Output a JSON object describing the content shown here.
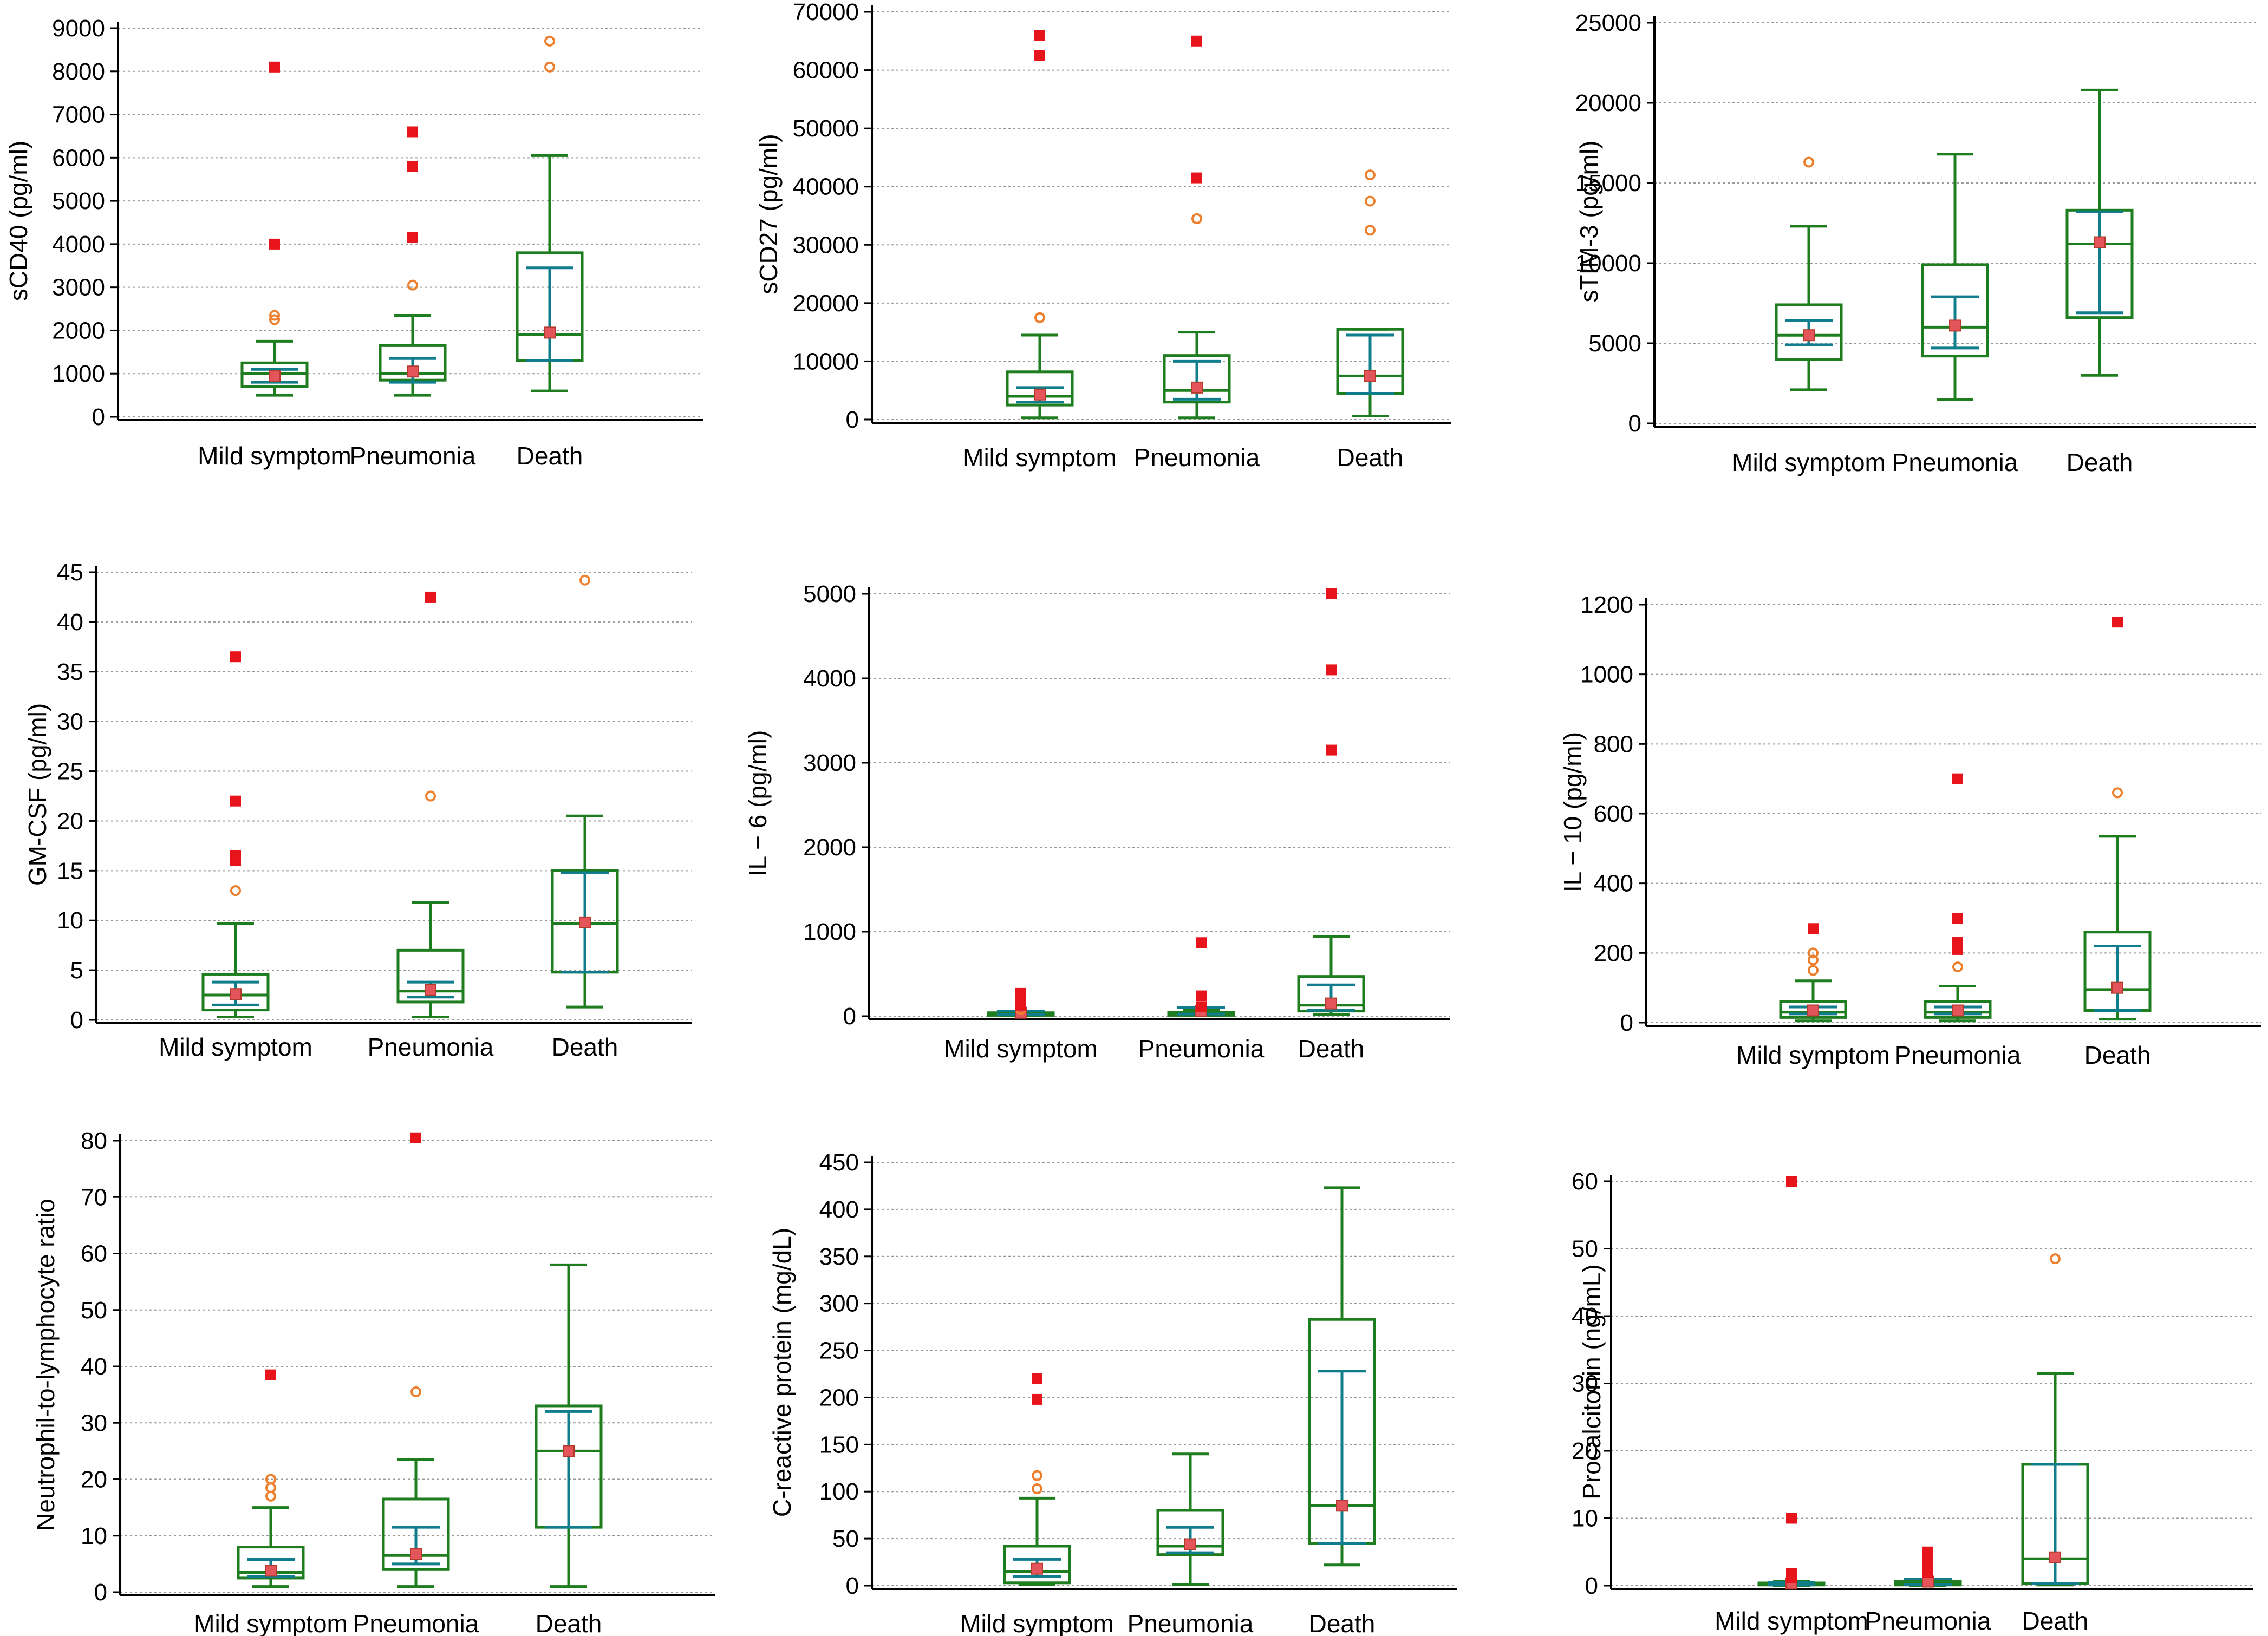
{
  "colors": {
    "box": "#1e7d1e",
    "mean_ci": "#0f7d8c",
    "far_outlier": "#e8141c",
    "outlier": "#ee7f2d",
    "grid": "#9a9a9a",
    "axis": "#000000"
  },
  "chart_data": [
    {
      "type": "box",
      "ylabel": "sCD40 (pg/ml)",
      "categories": [
        "Mild symptom",
        "Pneumonia",
        "Death"
      ],
      "ylim": [
        0,
        9000
      ],
      "yticks": [
        0,
        1000,
        2000,
        3000,
        4000,
        5000,
        6000,
        7000,
        8000,
        9000
      ],
      "yticklabels": [
        "0",
        "1000",
        "2000",
        "3000",
        "4000",
        "5000",
        "6000",
        "7000",
        "8000",
        "9000"
      ],
      "groups": [
        {
          "whisker_low": 500,
          "q1": 700,
          "median": 1000,
          "q3": 1250,
          "whisker_high": 1750,
          "mean": 950,
          "ci": [
            800,
            1100
          ],
          "outliers": [
            2250,
            2350
          ],
          "far_outliers": [
            4000,
            8100
          ]
        },
        {
          "whisker_low": 500,
          "q1": 850,
          "median": 1000,
          "q3": 1650,
          "whisker_high": 2350,
          "mean": 1050,
          "ci": [
            800,
            1350
          ],
          "outliers": [
            3050
          ],
          "far_outliers": [
            4150,
            5800,
            6600
          ]
        },
        {
          "whisker_low": 600,
          "q1": 1300,
          "median": 1900,
          "q3": 3800,
          "whisker_high": 6050,
          "mean": 1950,
          "ci": [
            1300,
            3450
          ],
          "outliers": [
            8100,
            8700
          ],
          "far_outliers": []
        }
      ]
    },
    {
      "type": "box",
      "ylabel": "sCD27 (pg/ml)",
      "categories": [
        "Mild symptom",
        "Pneumonia",
        "Death"
      ],
      "ylim": [
        0,
        70000
      ],
      "yticks": [
        0,
        10000,
        20000,
        30000,
        40000,
        50000,
        60000,
        70000
      ],
      "yticklabels": [
        "0",
        "10000",
        "20000",
        "30000",
        "40000",
        "50000",
        "60000",
        "70000"
      ],
      "groups": [
        {
          "whisker_low": 300,
          "q1": 2500,
          "median": 4000,
          "q3": 8200,
          "whisker_high": 14500,
          "mean": 4300,
          "ci": [
            3000,
            5500
          ],
          "outliers": [
            17500
          ],
          "far_outliers": [
            62500,
            66000
          ]
        },
        {
          "whisker_low": 300,
          "q1": 3000,
          "median": 5000,
          "q3": 11000,
          "whisker_high": 15000,
          "mean": 5500,
          "ci": [
            3500,
            10000
          ],
          "outliers": [
            34500
          ],
          "far_outliers": [
            41500,
            65000
          ]
        },
        {
          "whisker_low": 600,
          "q1": 4500,
          "median": 7500,
          "q3": 15500,
          "whisker_high": 15500,
          "mean": 7500,
          "ci": [
            4500,
            14500
          ],
          "outliers": [
            32500,
            37500,
            42000
          ],
          "far_outliers": []
        }
      ]
    },
    {
      "type": "box",
      "ylabel": "sTIM-3 (pg/ml)",
      "categories": [
        "Mild symptom",
        "Pneumonia",
        "Death"
      ],
      "ylim": [
        0,
        25000
      ],
      "yticks": [
        0,
        5000,
        10000,
        15000,
        20000,
        25000
      ],
      "yticklabels": [
        "0",
        "5000",
        "10000",
        "15000",
        "20000",
        "25000"
      ],
      "groups": [
        {
          "whisker_low": 2100,
          "q1": 4000,
          "median": 5500,
          "q3": 7400,
          "whisker_high": 12300,
          "mean": 5500,
          "ci": [
            4900,
            6400
          ],
          "outliers": [
            16300
          ],
          "far_outliers": []
        },
        {
          "whisker_low": 1500,
          "q1": 4200,
          "median": 6000,
          "q3": 9900,
          "whisker_high": 16800,
          "mean": 6100,
          "ci": [
            4700,
            7900
          ],
          "outliers": [],
          "far_outliers": []
        },
        {
          "whisker_low": 3000,
          "q1": 6600,
          "median": 11200,
          "q3": 13300,
          "whisker_high": 20800,
          "mean": 11300,
          "ci": [
            6900,
            13200
          ],
          "outliers": [],
          "far_outliers": []
        }
      ]
    },
    {
      "type": "box",
      "ylabel": "GM-CSF (pg/ml)",
      "categories": [
        "Mild symptom",
        "Pneumonia",
        "Death"
      ],
      "ylim": [
        0,
        45
      ],
      "yticks": [
        0,
        5,
        10,
        15,
        20,
        25,
        30,
        35,
        40,
        45
      ],
      "yticklabels": [
        "0",
        "5",
        "10",
        "15",
        "20",
        "25",
        "30",
        "35",
        "40",
        "45"
      ],
      "groups": [
        {
          "whisker_low": 0.3,
          "q1": 1,
          "median": 2.5,
          "q3": 4.6,
          "whisker_high": 9.7,
          "mean": 2.6,
          "ci": [
            1.5,
            3.8
          ],
          "outliers": [
            13
          ],
          "far_outliers": [
            16,
            16.5,
            22,
            36.5
          ]
        },
        {
          "whisker_low": 0.3,
          "q1": 1.8,
          "median": 2.9,
          "q3": 7,
          "whisker_high": 11.8,
          "mean": 3,
          "ci": [
            2.3,
            3.8
          ],
          "outliers": [
            22.5
          ],
          "far_outliers": [
            42.5
          ]
        },
        {
          "whisker_low": 1.3,
          "q1": 4.8,
          "median": 9.7,
          "q3": 15,
          "whisker_high": 20.5,
          "mean": 9.8,
          "ci": [
            4.8,
            14.8
          ],
          "outliers": [
            44.2
          ],
          "far_outliers": []
        }
      ]
    },
    {
      "type": "box",
      "ylabel": "IL − 6 (pg/ml)",
      "categories": [
        "Mild symptom",
        "Pneumonia",
        "Death"
      ],
      "ylim": [
        0,
        5000
      ],
      "yticks": [
        0,
        1000,
        2000,
        3000,
        4000,
        5000
      ],
      "yticklabels": [
        "0",
        "1000",
        "2000",
        "3000",
        "4000",
        "5000"
      ],
      "groups": [
        {
          "whisker_low": 5,
          "q1": 10,
          "median": 20,
          "q3": 40,
          "whisker_high": 60,
          "mean": 40,
          "ci": [
            20,
            60
          ],
          "outliers": [
            80
          ],
          "far_outliers": [
            130,
            200,
            270
          ]
        },
        {
          "whisker_low": 5,
          "q1": 10,
          "median": 25,
          "q3": 45,
          "whisker_high": 70,
          "mean": 60,
          "ci": [
            25,
            100
          ],
          "outliers": [],
          "far_outliers": [
            110,
            240,
            870
          ]
        },
        {
          "whisker_low": 20,
          "q1": 60,
          "median": 130,
          "q3": 470,
          "whisker_high": 940,
          "mean": 150,
          "ci": [
            70,
            370
          ],
          "outliers": [],
          "far_outliers": [
            3150,
            4100,
            5000
          ]
        }
      ]
    },
    {
      "type": "box",
      "ylabel": "IL − 10 (pg/ml)",
      "categories": [
        "Mild symptom",
        "Pneumonia",
        "Death"
      ],
      "ylim": [
        0,
        1200
      ],
      "yticks": [
        0,
        200,
        400,
        600,
        800,
        1000,
        1200
      ],
      "yticklabels": [
        "0",
        "200",
        "400",
        "600",
        "800",
        "1000",
        "1200"
      ],
      "groups": [
        {
          "whisker_low": 5,
          "q1": 15,
          "median": 30,
          "q3": 60,
          "whisker_high": 120,
          "mean": 35,
          "ci": [
            25,
            45
          ],
          "outliers": [
            150,
            180,
            200
          ],
          "far_outliers": [
            270
          ]
        },
        {
          "whisker_low": 5,
          "q1": 15,
          "median": 30,
          "q3": 60,
          "whisker_high": 105,
          "mean": 35,
          "ci": [
            25,
            45
          ],
          "outliers": [
            160
          ],
          "far_outliers": [
            210,
            230,
            300,
            700
          ]
        },
        {
          "whisker_low": 10,
          "q1": 35,
          "median": 95,
          "q3": 260,
          "whisker_high": 535,
          "mean": 100,
          "ci": [
            35,
            220
          ],
          "outliers": [
            660
          ],
          "far_outliers": [
            1150
          ]
        }
      ]
    },
    {
      "type": "box",
      "ylabel": "Neutrophil-to-lymphocyte ratio",
      "categories": [
        "Mild symptom",
        "Pneumonia",
        "Death"
      ],
      "ylim": [
        0,
        80
      ],
      "yticks": [
        0,
        10,
        20,
        30,
        40,
        50,
        60,
        70,
        80
      ],
      "yticklabels": [
        "0",
        "10",
        "20",
        "30",
        "40",
        "50",
        "60",
        "70",
        "80"
      ],
      "groups": [
        {
          "whisker_low": 1,
          "q1": 2.5,
          "median": 3.5,
          "q3": 8,
          "whisker_high": 15,
          "mean": 3.8,
          "ci": [
            2.8,
            5.8
          ],
          "outliers": [
            17,
            18.5,
            20
          ],
          "far_outliers": [
            38.5
          ]
        },
        {
          "whisker_low": 1,
          "q1": 4,
          "median": 6.5,
          "q3": 16.5,
          "whisker_high": 23.5,
          "mean": 6.8,
          "ci": [
            5,
            11.5
          ],
          "outliers": [
            35.5
          ],
          "far_outliers": [
            80.5
          ]
        },
        {
          "whisker_low": 1,
          "q1": 11.5,
          "median": 25,
          "q3": 33,
          "whisker_high": 58,
          "mean": 25,
          "ci": [
            11.5,
            32
          ],
          "outliers": [],
          "far_outliers": []
        }
      ]
    },
    {
      "type": "box",
      "ylabel": "C-reactive protein (mg/dL)",
      "categories": [
        "Mild symptom",
        "Pneumonia",
        "Death"
      ],
      "ylim": [
        0,
        450
      ],
      "yticks": [
        0,
        50,
        100,
        150,
        200,
        250,
        300,
        350,
        400,
        450
      ],
      "yticklabels": [
        "0",
        "50",
        "100",
        "150",
        "200",
        "250",
        "300",
        "350",
        "400",
        "450"
      ],
      "groups": [
        {
          "whisker_low": 1,
          "q1": 3,
          "median": 15,
          "q3": 42,
          "whisker_high": 93,
          "mean": 18,
          "ci": [
            10,
            28
          ],
          "outliers": [
            103,
            117
          ],
          "far_outliers": [
            198,
            220
          ]
        },
        {
          "whisker_low": 1,
          "q1": 33,
          "median": 42,
          "q3": 80,
          "whisker_high": 140,
          "mean": 44,
          "ci": [
            35,
            62
          ],
          "outliers": [],
          "far_outliers": []
        },
        {
          "whisker_low": 22,
          "q1": 45,
          "median": 85,
          "q3": 283,
          "whisker_high": 423,
          "mean": 85,
          "ci": [
            45,
            228
          ],
          "outliers": [],
          "far_outliers": []
        }
      ]
    },
    {
      "type": "box",
      "ylabel": "Procalcitonin (ng/mL)",
      "categories": [
        "Mild symptom",
        "Pneumonia",
        "Death"
      ],
      "ylim": [
        0,
        60
      ],
      "yticks": [
        0,
        10,
        20,
        30,
        40,
        50,
        60
      ],
      "yticklabels": [
        "0",
        "10",
        "20",
        "30",
        "40",
        "50",
        "60"
      ],
      "groups": [
        {
          "whisker_low": 0,
          "q1": 0.1,
          "median": 0.2,
          "q3": 0.4,
          "whisker_high": 0.6,
          "mean": 0.3,
          "ci": [
            0.1,
            0.5
          ],
          "outliers": [],
          "far_outliers": [
            1.2,
            1.8,
            10,
            60
          ]
        },
        {
          "whisker_low": 0,
          "q1": 0.1,
          "median": 0.3,
          "q3": 0.6,
          "whisker_high": 1,
          "mean": 0.6,
          "ci": [
            0.2,
            1
          ],
          "outliers": [],
          "far_outliers": [
            2,
            3,
            4,
            5
          ]
        },
        {
          "whisker_low": 0.1,
          "q1": 0.3,
          "median": 4,
          "q3": 18,
          "whisker_high": 31.5,
          "mean": 4.2,
          "ci": [
            0.3,
            18
          ],
          "outliers": [
            48.5
          ],
          "far_outliers": []
        }
      ]
    }
  ]
}
